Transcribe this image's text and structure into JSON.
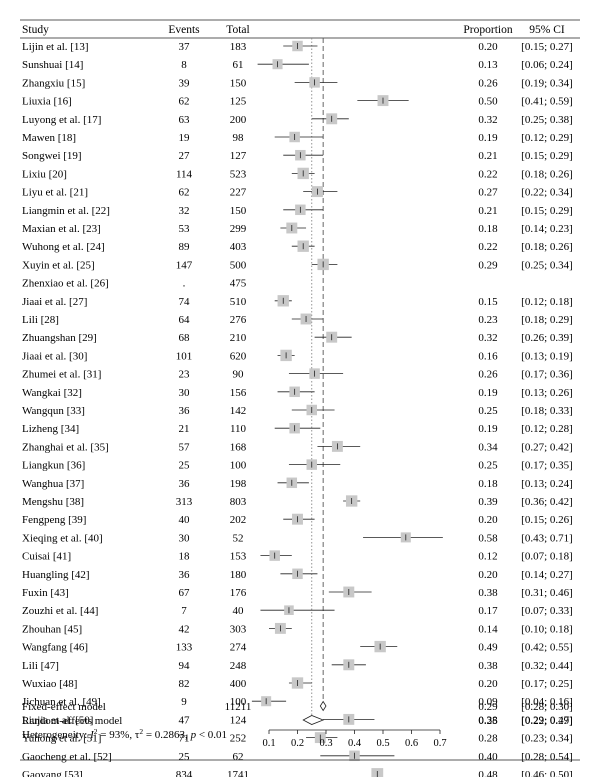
{
  "columns": {
    "study": "Study",
    "events": "Events",
    "total": "Total",
    "proportion": "Proportion",
    "ci": "95% CI"
  },
  "chart_data": {
    "type": "forest",
    "xlim": [
      0.1,
      0.7
    ],
    "x_ticks": [
      "0.1",
      "0.2",
      "0.3",
      "0.4",
      "0.5",
      "0.6",
      "0.7"
    ],
    "fixed_effect_line": 0.29,
    "random_effects_line": 0.25,
    "studies": [
      {
        "study": "Lijin et al. [13]",
        "events": "37",
        "total": "183",
        "proportion": 0.2,
        "prop_text": "0.20",
        "lower": 0.15,
        "upper": 0.27,
        "ci_text": "[0.15; 0.27]",
        "weight": 2.4
      },
      {
        "study": "Sunshuai [14]",
        "events": "8",
        "total": "61",
        "proportion": 0.13,
        "prop_text": "0.13",
        "lower": 0.06,
        "upper": 0.24,
        "ci_text": "[0.06; 0.24]",
        "weight": 2.3
      },
      {
        "study": "Zhangxiu [15]",
        "events": "39",
        "total": "150",
        "proportion": 0.26,
        "prop_text": "0.26",
        "lower": 0.19,
        "upper": 0.34,
        "ci_text": "[0.19; 0.34]",
        "weight": 2.4
      },
      {
        "study": "Liuxia [16]",
        "events": "62",
        "total": "125",
        "proportion": 0.5,
        "prop_text": "0.50",
        "lower": 0.41,
        "upper": 0.59,
        "ci_text": "[0.41; 0.59]",
        "weight": 2.5
      },
      {
        "study": "Luyong et al. [17]",
        "events": "63",
        "total": "200",
        "proportion": 0.32,
        "prop_text": "0.32",
        "lower": 0.25,
        "upper": 0.38,
        "ci_text": "[0.25; 0.38]",
        "weight": 2.5
      },
      {
        "study": "Mawen [18]",
        "events": "19",
        "total": "98",
        "proportion": 0.19,
        "prop_text": "0.19",
        "lower": 0.12,
        "upper": 0.29,
        "ci_text": "[0.12; 0.29]",
        "weight": 2.4
      },
      {
        "study": "Songwei [19]",
        "events": "27",
        "total": "127",
        "proportion": 0.21,
        "prop_text": "0.21",
        "lower": 0.15,
        "upper": 0.29,
        "ci_text": "[0.15; 0.29]",
        "weight": 2.4
      },
      {
        "study": "Lixiu [20]",
        "events": "114",
        "total": "523",
        "proportion": 0.22,
        "prop_text": "0.22",
        "lower": 0.18,
        "upper": 0.26,
        "ci_text": "[0.18; 0.26]",
        "weight": 2.6
      },
      {
        "study": "Liyu et al. [21]",
        "events": "62",
        "total": "227",
        "proportion": 0.27,
        "prop_text": "0.27",
        "lower": 0.22,
        "upper": 0.34,
        "ci_text": "[0.22; 0.34]",
        "weight": 2.5
      },
      {
        "study": "Liangmin et al. [22]",
        "events": "32",
        "total": "150",
        "proportion": 0.21,
        "prop_text": "0.21",
        "lower": 0.15,
        "upper": 0.29,
        "ci_text": "[0.15; 0.29]",
        "weight": 2.4
      },
      {
        "study": "Maxian et al. [23]",
        "events": "53",
        "total": "299",
        "proportion": 0.18,
        "prop_text": "0.18",
        "lower": 0.14,
        "upper": 0.23,
        "ci_text": "[0.14; 0.23]",
        "weight": 2.5
      },
      {
        "study": "Wuhong et al. [24]",
        "events": "89",
        "total": "403",
        "proportion": 0.22,
        "prop_text": "0.22",
        "lower": 0.18,
        "upper": 0.26,
        "ci_text": "[0.18; 0.26]",
        "weight": 2.6
      },
      {
        "study": "Xuyin et al. [25]",
        "events": "147",
        "total": "500",
        "proportion": 0.29,
        "prop_text": "0.29",
        "lower": 0.25,
        "upper": 0.34,
        "ci_text": "[0.25; 0.34]",
        "weight": 2.6
      },
      {
        "study": "Zhenxiao et al. [26]",
        "events": ".",
        "total": "475",
        "proportion": null,
        "prop_text": "",
        "lower": null,
        "upper": null,
        "ci_text": "",
        "weight": 0
      },
      {
        "study": "Jiaai et al. [27]",
        "events": "74",
        "total": "510",
        "proportion": 0.15,
        "prop_text": "0.15",
        "lower": 0.12,
        "upper": 0.18,
        "ci_text": "[0.12; 0.18]",
        "weight": 2.6
      },
      {
        "study": "Lili [28]",
        "events": "64",
        "total": "276",
        "proportion": 0.23,
        "prop_text": "0.23",
        "lower": 0.18,
        "upper": 0.29,
        "ci_text": "[0.18; 0.29]",
        "weight": 2.5
      },
      {
        "study": "Zhuangshan [29]",
        "events": "68",
        "total": "210",
        "proportion": 0.32,
        "prop_text": "0.32",
        "lower": 0.26,
        "upper": 0.39,
        "ci_text": "[0.26; 0.39]",
        "weight": 2.5
      },
      {
        "study": "Jiaai et al. [30]",
        "events": "101",
        "total": "620",
        "proportion": 0.16,
        "prop_text": "0.16",
        "lower": 0.13,
        "upper": 0.19,
        "ci_text": "[0.13; 0.19]",
        "weight": 2.6
      },
      {
        "study": "Zhumei et al. [31]",
        "events": "23",
        "total": "90",
        "proportion": 0.26,
        "prop_text": "0.26",
        "lower": 0.17,
        "upper": 0.36,
        "ci_text": "[0.17; 0.36]",
        "weight": 2.4
      },
      {
        "study": "Wangkai [32]",
        "events": "30",
        "total": "156",
        "proportion": 0.19,
        "prop_text": "0.19",
        "lower": 0.13,
        "upper": 0.26,
        "ci_text": "[0.13; 0.26]",
        "weight": 2.4
      },
      {
        "study": "Wangqun [33]",
        "events": "36",
        "total": "142",
        "proportion": 0.25,
        "prop_text": "0.25",
        "lower": 0.18,
        "upper": 0.33,
        "ci_text": "[0.18; 0.33]",
        "weight": 2.4
      },
      {
        "study": "Lizheng [34]",
        "events": "21",
        "total": "110",
        "proportion": 0.19,
        "prop_text": "0.19",
        "lower": 0.12,
        "upper": 0.28,
        "ci_text": "[0.12; 0.28]",
        "weight": 2.4
      },
      {
        "study": "Zhanghai et al. [35]",
        "events": "57",
        "total": "168",
        "proportion": 0.34,
        "prop_text": "0.34",
        "lower": 0.27,
        "upper": 0.42,
        "ci_text": "[0.27; 0.42]",
        "weight": 2.5
      },
      {
        "study": "Liangkun [36]",
        "events": "25",
        "total": "100",
        "proportion": 0.25,
        "prop_text": "0.25",
        "lower": 0.17,
        "upper": 0.35,
        "ci_text": "[0.17; 0.35]",
        "weight": 2.4
      },
      {
        "study": "Wanghua [37]",
        "events": "36",
        "total": "198",
        "proportion": 0.18,
        "prop_text": "0.18",
        "lower": 0.13,
        "upper": 0.24,
        "ci_text": "[0.13; 0.24]",
        "weight": 2.4
      },
      {
        "study": "Mengshu [38]",
        "events": "313",
        "total": "803",
        "proportion": 0.39,
        "prop_text": "0.39",
        "lower": 0.36,
        "upper": 0.42,
        "ci_text": "[0.36; 0.42]",
        "weight": 2.6
      },
      {
        "study": "Fengpeng [39]",
        "events": "40",
        "total": "202",
        "proportion": 0.2,
        "prop_text": "0.20",
        "lower": 0.15,
        "upper": 0.26,
        "ci_text": "[0.15; 0.26]",
        "weight": 2.5
      },
      {
        "study": "Xieqing et al. [40]",
        "events": "30",
        "total": "52",
        "proportion": 0.58,
        "prop_text": "0.58",
        "lower": 0.43,
        "upper": 0.71,
        "ci_text": "[0.43; 0.71]",
        "weight": 2.3
      },
      {
        "study": "Cuisai [41]",
        "events": "18",
        "total": "153",
        "proportion": 0.12,
        "prop_text": "0.12",
        "lower": 0.07,
        "upper": 0.18,
        "ci_text": "[0.07; 0.18]",
        "weight": 2.4
      },
      {
        "study": "Huangling [42]",
        "events": "36",
        "total": "180",
        "proportion": 0.2,
        "prop_text": "0.20",
        "lower": 0.14,
        "upper": 0.27,
        "ci_text": "[0.14; 0.27]",
        "weight": 2.4
      },
      {
        "study": "Fuxin [43]",
        "events": "67",
        "total": "176",
        "proportion": 0.38,
        "prop_text": "0.38",
        "lower": 0.31,
        "upper": 0.46,
        "ci_text": "[0.31; 0.46]",
        "weight": 2.5
      },
      {
        "study": "Zouzhi et al. [44]",
        "events": "7",
        "total": "40",
        "proportion": 0.17,
        "prop_text": "0.17",
        "lower": 0.07,
        "upper": 0.33,
        "ci_text": "[0.07; 0.33]",
        "weight": 2.2
      },
      {
        "study": "Zhouhan [45]",
        "events": "42",
        "total": "303",
        "proportion": 0.14,
        "prop_text": "0.14",
        "lower": 0.1,
        "upper": 0.18,
        "ci_text": "[0.10; 0.18]",
        "weight": 2.5
      },
      {
        "study": "Wangfang [46]",
        "events": "133",
        "total": "274",
        "proportion": 0.49,
        "prop_text": "0.49",
        "lower": 0.42,
        "upper": 0.55,
        "ci_text": "[0.42; 0.55]",
        "weight": 2.6
      },
      {
        "study": "Lili [47]",
        "events": "94",
        "total": "248",
        "proportion": 0.38,
        "prop_text": "0.38",
        "lower": 0.32,
        "upper": 0.44,
        "ci_text": "[0.32; 0.44]",
        "weight": 2.5
      },
      {
        "study": "Wuxiao [48]",
        "events": "82",
        "total": "400",
        "proportion": 0.2,
        "prop_text": "0.20",
        "lower": 0.17,
        "upper": 0.25,
        "ci_text": "[0.17; 0.25]",
        "weight": 2.6
      },
      {
        "study": "Jichuan et al. [49]",
        "events": "9",
        "total": "100",
        "proportion": 0.09,
        "prop_text": "0.09",
        "lower": 0.04,
        "upper": 0.16,
        "ci_text": "[0.04; 0.16]",
        "weight": 2.3
      },
      {
        "study": "Liujia et al. [50]",
        "events": "47",
        "total": "124",
        "proportion": 0.38,
        "prop_text": "0.38",
        "lower": 0.29,
        "upper": 0.47,
        "ci_text": "[0.29; 0.47]",
        "weight": 2.5
      },
      {
        "study": "Yuhong et al. [51]",
        "events": "71",
        "total": "252",
        "proportion": 0.28,
        "prop_text": "0.28",
        "lower": 0.23,
        "upper": 0.34,
        "ci_text": "[0.23; 0.34]",
        "weight": 2.5
      },
      {
        "study": "Gaocheng et al. [52]",
        "events": "25",
        "total": "62",
        "proportion": 0.4,
        "prop_text": "0.40",
        "lower": 0.28,
        "upper": 0.54,
        "ci_text": "[0.28; 0.54]",
        "weight": 2.4
      },
      {
        "study": "Gaoyang [53]",
        "events": "834",
        "total": "1741",
        "proportion": 0.48,
        "prop_text": "0.48",
        "lower": 0.46,
        "upper": 0.5,
        "ci_text": "[0.46; 0.50]",
        "weight": 2.7
      }
    ],
    "summaries": [
      {
        "label": "Fixed-effect model",
        "total": "11211",
        "estimate": 0.29,
        "lower": 0.28,
        "upper": 0.3,
        "prop_text": "0.29",
        "ci_text": "[0.28; 0.30]"
      },
      {
        "label": "Random-effects model",
        "total": "",
        "estimate": 0.25,
        "lower": 0.22,
        "upper": 0.29,
        "prop_text": "0.25",
        "ci_text": "[0.22; 0.29]"
      }
    ],
    "heterogeneity": {
      "prefix": "Heterogeneity: ",
      "i2_symbol": "I",
      "i2_value": " = 93%, τ",
      "tau2_value": " = 0.2863, ",
      "p_symbol": "p",
      "p_value": " < 0.01"
    }
  },
  "colors": {
    "box": "#c8c8c8",
    "line": "#222222",
    "dashed": "#555555",
    "dotted": "#888888",
    "diamond_fill": "#ffffff"
  }
}
